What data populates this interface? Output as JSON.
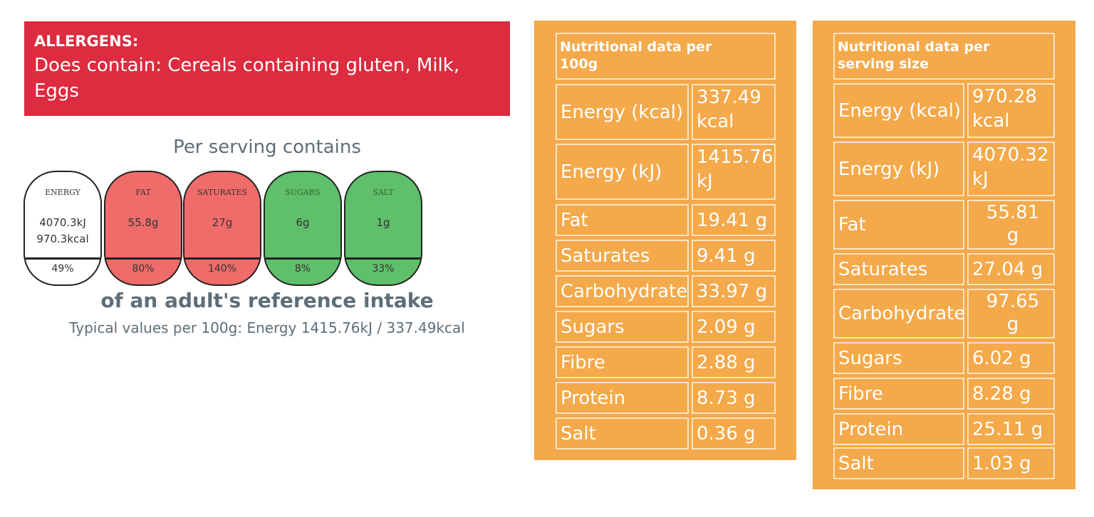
{
  "allergens": {
    "title": "ALLERGENS:",
    "line1": "Does contain: Cereals containing gluten, Milk,",
    "line2": "Eggs"
  },
  "traffic_light": {
    "heading": "Per serving contains",
    "items": [
      {
        "label": "ENERGY",
        "amount_line1": "4070.3kJ",
        "amount_line2": "970.3kcal",
        "percent": "49%",
        "color": "#ffffff"
      },
      {
        "label": "FAT",
        "amount_line1": "55.8g",
        "amount_line2": "",
        "percent": "80%",
        "color": "#ef6c6a"
      },
      {
        "label": "SATURATES",
        "amount_line1": "27g",
        "amount_line2": "",
        "percent": "140%",
        "color": "#ef6c6a"
      },
      {
        "label": "SUGARS",
        "amount_line1": "6g",
        "amount_line2": "",
        "percent": "8%",
        "color": "#5fbf6a"
      },
      {
        "label": "SALT",
        "amount_line1": "1g",
        "amount_line2": "",
        "percent": "33%",
        "color": "#5fbf6a"
      }
    ],
    "reference": "of an adult's reference intake",
    "typical": "Typical values per 100g: Energy 1415.76kJ / 337.49kcal"
  },
  "table_100g": {
    "header_line1": "Nutritional data per",
    "header_line2": "100g",
    "rows": [
      {
        "name": "Energy (kcal)",
        "v1": "337.49",
        "v2": "kcal"
      },
      {
        "name": "Energy (kJ)",
        "v1": "1415.76",
        "v2": "kJ"
      },
      {
        "name": "Fat",
        "v1": "19.41 g",
        "v2": ""
      },
      {
        "name": "Saturates",
        "v1": "9.41 g",
        "v2": ""
      },
      {
        "name": "Carbohydrate",
        "v1": "33.97 g",
        "v2": ""
      },
      {
        "name": "Sugars",
        "v1": "2.09 g",
        "v2": ""
      },
      {
        "name": "Fibre",
        "v1": "2.88 g",
        "v2": ""
      },
      {
        "name": "Protein",
        "v1": "8.73 g",
        "v2": ""
      },
      {
        "name": "Salt",
        "v1": "0.36 g",
        "v2": ""
      }
    ]
  },
  "table_serving": {
    "header_line1": "Nutritional data per",
    "header_line2": "serving size",
    "rows": [
      {
        "name": "Energy (kcal)",
        "v1": "970.28",
        "v2": "kcal"
      },
      {
        "name": "Energy (kJ)",
        "v1": "4070.32",
        "v2": "kJ"
      },
      {
        "name": "Fat",
        "v1": "55.81",
        "v2": "g"
      },
      {
        "name": "Saturates",
        "v1": "27.04 g",
        "v2": ""
      },
      {
        "name": "Carbohydrate",
        "v1": "97.65",
        "v2": "g"
      },
      {
        "name": "Sugars",
        "v1": "6.02 g",
        "v2": ""
      },
      {
        "name": "Fibre",
        "v1": "8.28 g",
        "v2": ""
      },
      {
        "name": "Protein",
        "v1": "25.11 g",
        "v2": ""
      },
      {
        "name": "Salt",
        "v1": "1.03 g",
        "v2": ""
      }
    ]
  }
}
